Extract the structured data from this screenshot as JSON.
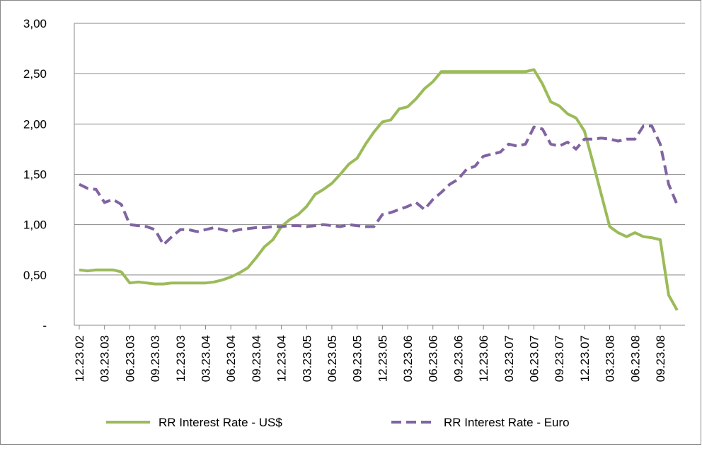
{
  "chart_data": {
    "type": "line",
    "categories": [
      "12.23.02",
      null,
      null,
      "03.23.03",
      null,
      null,
      "06.23.03",
      null,
      null,
      "09.23.03",
      null,
      null,
      "12.23.03",
      null,
      null,
      "03.23.04",
      null,
      null,
      "06.23.04",
      null,
      null,
      "09.23.04",
      null,
      null,
      "12.23.04",
      null,
      null,
      "03.23.05",
      null,
      null,
      "06.23.05",
      null,
      null,
      "09.23.05",
      null,
      null,
      "12.23.05",
      null,
      null,
      "03.23.06",
      null,
      null,
      "06.23.06",
      null,
      null,
      "09.23.06",
      null,
      null,
      "12.23.06",
      null,
      null,
      "03.23.07",
      null,
      null,
      "06.23.07",
      null,
      null,
      "09.23.07",
      null,
      null,
      "12.23.07",
      null,
      null,
      "03.23.08",
      null,
      null,
      "06.23.08",
      null,
      null,
      "09.23.08",
      null,
      null
    ],
    "series": [
      {
        "name": "RR Interest Rate - US$",
        "color": "#9bbb59",
        "dash": "solid",
        "values": [
          0.55,
          0.54,
          0.55,
          0.55,
          0.55,
          0.53,
          0.42,
          0.43,
          0.42,
          0.41,
          0.41,
          0.42,
          0.42,
          0.42,
          0.42,
          0.42,
          0.43,
          0.45,
          0.48,
          0.52,
          0.57,
          0.67,
          0.78,
          0.85,
          0.98,
          1.05,
          1.1,
          1.18,
          1.3,
          1.35,
          1.41,
          1.5,
          1.6,
          1.66,
          1.8,
          1.92,
          2.02,
          2.04,
          2.15,
          2.17,
          2.25,
          2.35,
          2.42,
          2.52,
          2.52,
          2.52,
          2.52,
          2.52,
          2.52,
          2.52,
          2.52,
          2.52,
          2.52,
          2.52,
          2.54,
          2.4,
          2.22,
          2.18,
          2.1,
          2.06,
          1.93,
          1.62,
          1.3,
          0.98,
          0.92,
          0.88,
          0.92,
          0.88,
          0.87,
          0.85,
          0.3,
          0.15
        ]
      },
      {
        "name": "RR Interest Rate - Euro",
        "color": "#8064a2",
        "dash": "dashed",
        "values": [
          1.4,
          1.36,
          1.35,
          1.22,
          1.25,
          1.2,
          1.0,
          0.99,
          0.98,
          0.95,
          0.8,
          0.88,
          0.95,
          0.95,
          0.93,
          0.95,
          0.97,
          0.95,
          0.93,
          0.95,
          0.96,
          0.97,
          0.97,
          0.98,
          0.98,
          0.99,
          0.99,
          0.98,
          0.99,
          1.0,
          0.99,
          0.98,
          1.0,
          0.99,
          0.98,
          0.98,
          1.1,
          1.12,
          1.15,
          1.18,
          1.22,
          1.15,
          1.25,
          1.32,
          1.4,
          1.45,
          1.55,
          1.58,
          1.68,
          1.7,
          1.72,
          1.8,
          1.78,
          1.8,
          1.97,
          1.95,
          1.8,
          1.78,
          1.82,
          1.75,
          1.85,
          1.85,
          1.86,
          1.85,
          1.83,
          1.85,
          1.85,
          1.98,
          1.98,
          1.8,
          1.4,
          1.2
        ]
      }
    ],
    "ylim": [
      0,
      3
    ],
    "yticks": [
      {
        "value": 0,
        "label": "-"
      },
      {
        "value": 0.5,
        "label": "0,50"
      },
      {
        "value": 1,
        "label": "1,00"
      },
      {
        "value": 1.5,
        "label": "1,50"
      },
      {
        "value": 2,
        "label": "2,00"
      },
      {
        "value": 2.5,
        "label": "2,50"
      },
      {
        "value": 3,
        "label": "3,00"
      }
    ],
    "grid": true,
    "legend": "bottom"
  }
}
